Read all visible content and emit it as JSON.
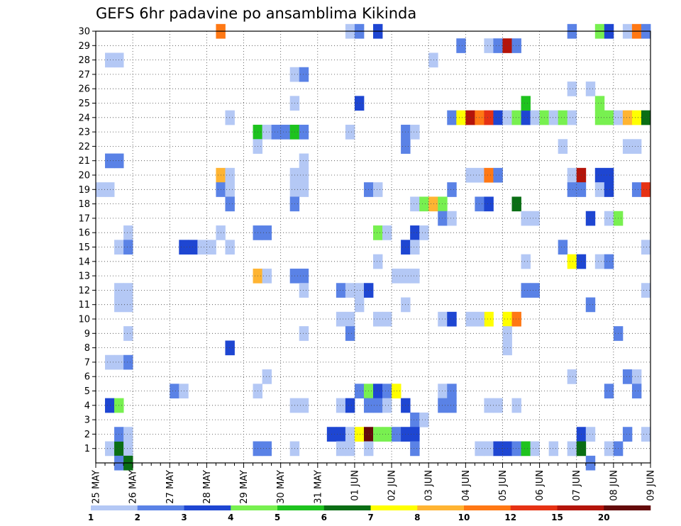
{
  "chart_data": {
    "type": "heatmap",
    "title": "GEFS 6hr padavine po ansamblima Kikinda",
    "xlabel": "",
    "ylabel": "",
    "x_tick_labels": [
      "25 MAY",
      "26 MAY",
      "27 MAY",
      "28 MAY",
      "29 MAY",
      "30 MAY",
      "31 MAY",
      "01 JUN",
      "02 JUN",
      "03 JUN",
      "04 JUN",
      "05 JUN",
      "06 JUN",
      "07 JUN",
      "08 JUN",
      "09 JUN"
    ],
    "y_tick_labels": [
      "1",
      "2",
      "3",
      "4",
      "5",
      "6",
      "7",
      "8",
      "9",
      "10",
      "11",
      "12",
      "13",
      "14",
      "15",
      "16",
      "17",
      "18",
      "19",
      "20",
      "21",
      "22",
      "23",
      "24",
      "25",
      "26",
      "27",
      "28",
      "29",
      "30"
    ],
    "x_range_steps": [
      0,
      60
    ],
    "steps_per_day": 4,
    "y_range": [
      0,
      30
    ],
    "grid": true,
    "legend_placement": "bottom",
    "colorbar": {
      "labels": [
        "1",
        "2",
        "3",
        "4",
        "5",
        "6",
        "7",
        "8",
        "10",
        "12",
        "15",
        "20"
      ],
      "colors": [
        "#b4c8f5",
        "#5a82e6",
        "#1e46d2",
        "#78f050",
        "#1ec31e",
        "#0a6e14",
        "#ffff00",
        "#ffb432",
        "#ff7814",
        "#e63214",
        "#b4140a",
        "#640a0a"
      ]
    },
    "cells": [
      [
        1,
        28,
        1
      ],
      [
        2,
        28,
        1
      ],
      [
        1,
        21,
        2
      ],
      [
        2,
        21,
        2
      ],
      [
        0,
        19,
        1
      ],
      [
        1,
        19,
        1
      ],
      [
        1,
        7,
        1
      ],
      [
        2,
        7,
        1
      ],
      [
        3,
        7,
        2
      ],
      [
        3,
        16,
        1
      ],
      [
        2,
        15,
        1
      ],
      [
        3,
        15,
        2
      ],
      [
        2,
        12,
        1
      ],
      [
        3,
        12,
        1
      ],
      [
        2,
        11,
        1
      ],
      [
        3,
        11,
        1
      ],
      [
        3,
        9,
        1
      ],
      [
        1,
        4,
        3
      ],
      [
        2,
        4,
        4
      ],
      [
        1,
        1,
        1
      ],
      [
        2,
        1,
        6
      ],
      [
        3,
        1,
        1
      ],
      [
        2,
        2,
        2
      ],
      [
        3,
        2,
        1
      ],
      [
        2,
        0,
        2
      ],
      [
        3,
        0,
        6
      ],
      [
        13,
        30,
        9
      ],
      [
        14,
        24,
        1
      ],
      [
        13,
        20,
        8
      ],
      [
        14,
        20,
        1
      ],
      [
        13,
        19,
        2
      ],
      [
        14,
        19,
        1
      ],
      [
        13,
        16,
        1
      ],
      [
        14,
        18,
        2
      ],
      [
        14,
        8,
        3
      ],
      [
        9,
        15,
        3
      ],
      [
        10,
        15,
        3
      ],
      [
        11,
        15,
        1
      ],
      [
        12,
        15,
        1
      ],
      [
        14,
        15,
        1
      ],
      [
        8,
        5,
        2
      ],
      [
        9,
        5,
        1
      ],
      [
        17,
        23,
        5
      ],
      [
        18,
        23,
        1
      ],
      [
        19,
        23,
        2
      ],
      [
        20,
        23,
        2
      ],
      [
        21,
        23,
        5
      ],
      [
        22,
        23,
        2
      ],
      [
        17,
        22,
        1
      ],
      [
        17,
        16,
        2
      ],
      [
        18,
        16,
        2
      ],
      [
        17,
        13,
        8
      ],
      [
        18,
        13,
        1
      ],
      [
        17,
        5,
        1
      ],
      [
        18,
        6,
        1
      ],
      [
        17,
        1,
        2
      ],
      [
        18,
        1,
        2
      ],
      [
        21,
        27,
        1
      ],
      [
        22,
        27,
        2
      ],
      [
        21,
        25,
        1
      ],
      [
        22,
        21,
        1
      ],
      [
        21,
        20,
        1
      ],
      [
        22,
        20,
        1
      ],
      [
        21,
        19,
        1
      ],
      [
        22,
        19,
        1
      ],
      [
        21,
        18,
        2
      ],
      [
        21,
        13,
        2
      ],
      [
        22,
        13,
        2
      ],
      [
        22,
        12,
        1
      ],
      [
        22,
        9,
        1
      ],
      [
        21,
        4,
        1
      ],
      [
        22,
        4,
        1
      ],
      [
        21,
        1,
        1
      ],
      [
        27,
        30,
        1
      ],
      [
        28,
        30,
        2
      ],
      [
        30,
        30,
        3
      ],
      [
        27,
        23,
        1
      ],
      [
        28,
        25,
        3
      ],
      [
        26,
        12,
        2
      ],
      [
        27,
        12,
        1
      ],
      [
        28,
        12,
        1
      ],
      [
        28,
        11,
        1
      ],
      [
        26,
        10,
        1
      ],
      [
        27,
        10,
        1
      ],
      [
        27,
        9,
        2
      ],
      [
        26,
        4,
        1
      ],
      [
        27,
        4,
        3
      ],
      [
        28,
        5,
        2
      ],
      [
        29,
        5,
        4
      ],
      [
        30,
        5,
        3
      ],
      [
        31,
        5,
        2
      ],
      [
        29,
        4,
        2
      ],
      [
        25,
        2,
        3
      ],
      [
        26,
        2,
        3
      ],
      [
        27,
        2,
        1
      ],
      [
        28,
        2,
        7
      ],
      [
        29,
        2,
        12
      ],
      [
        30,
        2,
        4
      ],
      [
        31,
        2,
        4
      ],
      [
        26,
        1,
        1
      ],
      [
        27,
        1,
        1
      ],
      [
        29,
        1,
        1
      ],
      [
        29,
        19,
        2
      ],
      [
        30,
        19,
        1
      ],
      [
        30,
        16,
        4
      ],
      [
        31,
        16,
        1
      ],
      [
        29,
        12,
        3
      ],
      [
        30,
        14,
        1
      ],
      [
        30,
        10,
        1
      ],
      [
        31,
        10,
        1
      ],
      [
        30,
        4,
        2
      ],
      [
        31,
        4,
        1
      ],
      [
        33,
        23,
        2
      ],
      [
        34,
        23,
        1
      ],
      [
        33,
        22,
        2
      ],
      [
        34,
        18,
        1
      ],
      [
        35,
        18,
        4
      ],
      [
        36,
        18,
        8
      ],
      [
        37,
        18,
        4
      ],
      [
        34,
        16,
        3
      ],
      [
        35,
        16,
        1
      ],
      [
        33,
        15,
        3
      ],
      [
        34,
        15,
        1
      ],
      [
        32,
        13,
        1
      ],
      [
        33,
        13,
        1
      ],
      [
        34,
        13,
        1
      ],
      [
        33,
        11,
        1
      ],
      [
        32,
        5,
        7
      ],
      [
        33,
        4,
        3
      ],
      [
        34,
        3,
        2
      ],
      [
        35,
        3,
        1
      ],
      [
        32,
        2,
        2
      ],
      [
        33,
        2,
        3
      ],
      [
        34,
        2,
        3
      ],
      [
        34,
        1,
        2
      ],
      [
        36,
        28,
        1
      ],
      [
        37,
        17,
        2
      ],
      [
        38,
        17,
        1
      ],
      [
        37,
        10,
        1
      ],
      [
        38,
        10,
        3
      ],
      [
        37,
        5,
        1
      ],
      [
        38,
        5,
        2
      ],
      [
        37,
        4,
        2
      ],
      [
        38,
        4,
        2
      ],
      [
        39,
        29,
        2
      ],
      [
        42,
        29,
        1
      ],
      [
        43,
        29,
        2
      ],
      [
        44,
        29,
        11
      ],
      [
        45,
        29,
        2
      ],
      [
        38,
        24,
        2
      ],
      [
        39,
        24,
        7
      ],
      [
        40,
        24,
        11
      ],
      [
        41,
        24,
        9
      ],
      [
        42,
        24,
        10
      ],
      [
        43,
        24,
        3
      ],
      [
        44,
        24,
        1
      ],
      [
        45,
        24,
        4
      ],
      [
        46,
        24,
        3
      ],
      [
        47,
        24,
        1
      ],
      [
        48,
        24,
        4
      ],
      [
        49,
        24,
        1
      ],
      [
        46,
        25,
        5
      ],
      [
        40,
        20,
        1
      ],
      [
        41,
        20,
        1
      ],
      [
        42,
        20,
        9
      ],
      [
        43,
        20,
        2
      ],
      [
        38,
        19,
        2
      ],
      [
        41,
        18,
        2
      ],
      [
        42,
        18,
        3
      ],
      [
        45,
        18,
        6
      ],
      [
        42,
        10,
        7
      ],
      [
        44,
        10,
        7
      ],
      [
        45,
        10,
        9
      ],
      [
        41,
        10,
        1
      ],
      [
        40,
        10,
        1
      ],
      [
        44,
        9,
        1
      ],
      [
        44,
        8,
        1
      ],
      [
        42,
        4,
        1
      ],
      [
        43,
        4,
        1
      ],
      [
        45,
        4,
        1
      ],
      [
        41,
        1,
        1
      ],
      [
        42,
        1,
        1
      ],
      [
        43,
        1,
        3
      ],
      [
        44,
        1,
        3
      ],
      [
        45,
        1,
        2
      ],
      [
        46,
        1,
        5
      ],
      [
        47,
        1,
        1
      ],
      [
        49,
        1,
        1
      ],
      [
        46,
        17,
        1
      ],
      [
        47,
        17,
        1
      ],
      [
        46,
        14,
        1
      ],
      [
        46,
        12,
        2
      ],
      [
        47,
        12,
        2
      ],
      [
        51,
        30,
        2
      ],
      [
        54,
        30,
        4
      ],
      [
        55,
        30,
        3
      ],
      [
        57,
        30,
        1
      ],
      [
        58,
        30,
        9
      ],
      [
        59,
        30,
        2
      ],
      [
        53,
        26,
        1
      ],
      [
        51,
        26,
        1
      ],
      [
        54,
        25,
        4
      ],
      [
        50,
        24,
        4
      ],
      [
        51,
        24,
        1
      ],
      [
        54,
        24,
        4
      ],
      [
        55,
        24,
        4
      ],
      [
        56,
        24,
        1
      ],
      [
        57,
        24,
        8
      ],
      [
        58,
        24,
        7
      ],
      [
        59,
        24,
        6
      ],
      [
        51,
        20,
        1
      ],
      [
        52,
        20,
        11
      ],
      [
        54,
        20,
        3
      ],
      [
        55,
        20,
        3
      ],
      [
        51,
        19,
        2
      ],
      [
        52,
        19,
        2
      ],
      [
        54,
        19,
        1
      ],
      [
        55,
        19,
        3
      ],
      [
        58,
        19,
        2
      ],
      [
        59,
        19,
        10
      ],
      [
        50,
        22,
        1
      ],
      [
        57,
        22,
        1
      ],
      [
        58,
        22,
        1
      ],
      [
        53,
        17,
        3
      ],
      [
        55,
        17,
        1
      ],
      [
        56,
        17,
        4
      ],
      [
        50,
        15,
        2
      ],
      [
        51,
        14,
        7
      ],
      [
        52,
        14,
        3
      ],
      [
        54,
        14,
        1
      ],
      [
        55,
        14,
        2
      ],
      [
        59,
        15,
        1
      ],
      [
        53,
        11,
        2
      ],
      [
        59,
        12,
        1
      ],
      [
        56,
        9,
        2
      ],
      [
        51,
        6,
        1
      ],
      [
        57,
        6,
        2
      ],
      [
        58,
        6,
        1
      ],
      [
        55,
        5,
        2
      ],
      [
        58,
        5,
        2
      ],
      [
        52,
        2,
        3
      ],
      [
        53,
        2,
        1
      ],
      [
        57,
        2,
        2
      ],
      [
        59,
        2,
        1
      ],
      [
        51,
        1,
        1
      ],
      [
        52,
        1,
        6
      ],
      [
        55,
        1,
        1
      ],
      [
        56,
        1,
        2
      ],
      [
        53,
        0,
        2
      ]
    ]
  }
}
